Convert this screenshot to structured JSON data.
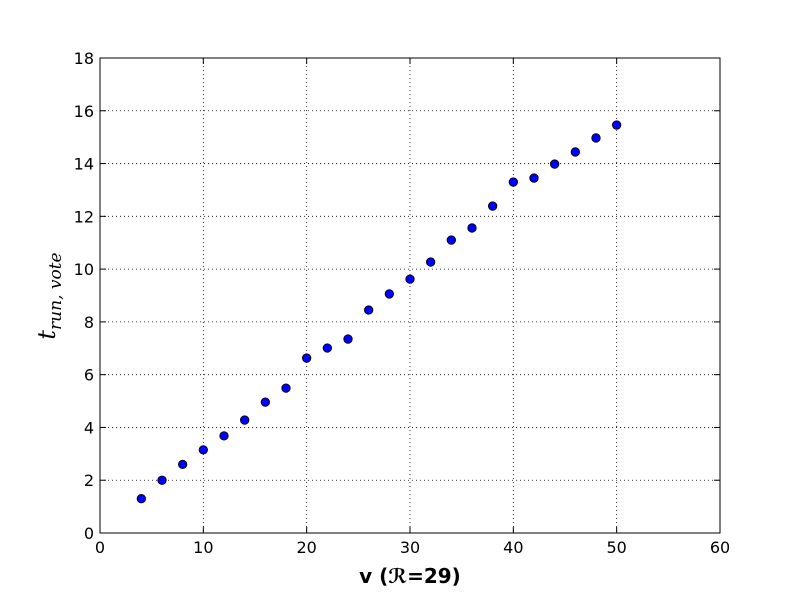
{
  "chart_data": {
    "type": "scatter",
    "xlabel": "v (ℛ=29)",
    "ylabel": {
      "text": "t",
      "subscript": "run, vote"
    },
    "series": [
      {
        "color": "#0000ff",
        "x": [
          4,
          6,
          8,
          10,
          12,
          14,
          16,
          18,
          20,
          22,
          24,
          26,
          28,
          30,
          32,
          34,
          36,
          38,
          40,
          42,
          44,
          46,
          48,
          50
        ],
        "values": [
          1.3,
          2.0,
          2.6,
          3.15,
          3.68,
          4.28,
          4.96,
          5.49,
          6.63,
          7.01,
          7.35,
          8.45,
          9.06,
          9.62,
          10.27,
          11.1,
          11.56,
          12.39,
          13.3,
          13.45,
          13.98,
          14.44,
          14.97,
          15.46
        ]
      }
    ],
    "xlim": [
      0,
      60
    ],
    "xticks": [
      0,
      10,
      20,
      30,
      40,
      50,
      60
    ],
    "ylim": [
      0,
      18
    ],
    "yticks": [
      0,
      2,
      4,
      6,
      8,
      10,
      12,
      14,
      16,
      18
    ],
    "grid": true
  }
}
